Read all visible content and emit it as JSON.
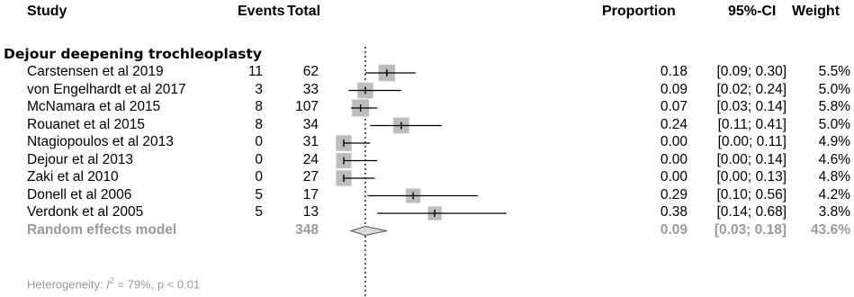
{
  "chart_data": {
    "type": "forest",
    "title": "",
    "columns": {
      "study": "Study",
      "events": "Events",
      "total": "Total",
      "proportion": "Proportion",
      "ci": "95%-CI",
      "weight": "Weight"
    },
    "subgroup": "Dejour deepening trochleoplasty",
    "x_range": [
      0,
      0.7
    ],
    "reference_line": 0.09,
    "studies": [
      {
        "label": "Carstensen et al 2019",
        "events": "11",
        "total": "62",
        "est": 0.18,
        "lo": 0.09,
        "hi": 0.3,
        "weight_pct": 5.5,
        "prop": "0.18",
        "ci": "[0.09; 0.30]",
        "weight": "5.5%"
      },
      {
        "label": "von Engelhardt  et al 2017",
        "events": "3",
        "total": "33",
        "est": 0.09,
        "lo": 0.02,
        "hi": 0.24,
        "weight_pct": 5.0,
        "prop": "0.09",
        "ci": "[0.02; 0.24]",
        "weight": "5.0%"
      },
      {
        "label": "McNamara et al 2015",
        "events": "8",
        "total": "107",
        "est": 0.07,
        "lo": 0.03,
        "hi": 0.14,
        "weight_pct": 5.8,
        "prop": "0.07",
        "ci": "[0.03; 0.14]",
        "weight": "5.8%"
      },
      {
        "label": "Rouanet et al 2015",
        "events": "8",
        "total": "34",
        "est": 0.24,
        "lo": 0.11,
        "hi": 0.41,
        "weight_pct": 5.0,
        "prop": "0.24",
        "ci": "[0.11; 0.41]",
        "weight": "5.0%"
      },
      {
        "label": "Ntagiopoulos et al 2013",
        "events": "0",
        "total": "31",
        "est": 0.0,
        "lo": 0.0,
        "hi": 0.11,
        "weight_pct": 4.9,
        "prop": "0.00",
        "ci": "[0.00; 0.11]",
        "weight": "4.9%"
      },
      {
        "label": "Dejour et al 2013",
        "events": "0",
        "total": "24",
        "est": 0.0,
        "lo": 0.0,
        "hi": 0.14,
        "weight_pct": 4.6,
        "prop": "0.00",
        "ci": "[0.00; 0.14]",
        "weight": "4.6%"
      },
      {
        "label": "Zaki et al 2010",
        "events": "0",
        "total": "27",
        "est": 0.0,
        "lo": 0.0,
        "hi": 0.13,
        "weight_pct": 4.8,
        "prop": "0.00",
        "ci": "[0.00; 0.13]",
        "weight": "4.8%"
      },
      {
        "label": "Donell  et al 2006",
        "events": "5",
        "total": "17",
        "est": 0.29,
        "lo": 0.1,
        "hi": 0.56,
        "weight_pct": 4.2,
        "prop": "0.29",
        "ci": "[0.10; 0.56]",
        "weight": "4.2%"
      },
      {
        "label": "Verdonk et al 2005",
        "events": "5",
        "total": "13",
        "est": 0.38,
        "lo": 0.14,
        "hi": 0.68,
        "weight_pct": 3.8,
        "prop": "0.38",
        "ci": "[0.14; 0.68]",
        "weight": "3.8%"
      }
    ],
    "pooled": {
      "label": "Random effects model",
      "total": "348",
      "est": 0.09,
      "lo": 0.03,
      "hi": 0.18,
      "prop": "0.09",
      "ci": "[0.03; 0.18]",
      "weight": "43.6%"
    },
    "heterogeneity": {
      "prefix": "Heterogeneity: ",
      "i_letter": "I",
      "sup": "2",
      "rest": " = 79%, p < 0.01"
    }
  }
}
